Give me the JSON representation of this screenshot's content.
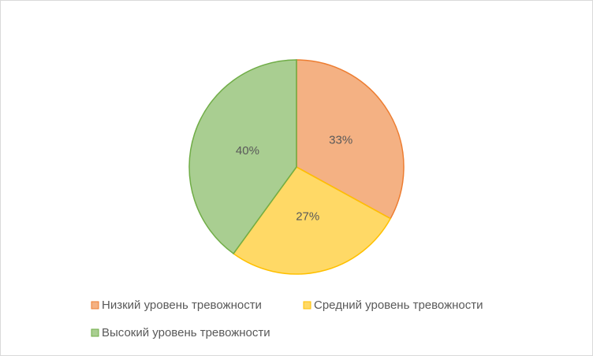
{
  "chart_data": {
    "type": "pie",
    "categories": [
      "Низкий уровень тревожности",
      "Средний уровень тревожности",
      "Высокий уровень тревожности"
    ],
    "values": [
      33,
      27,
      40
    ],
    "value_labels": [
      "33%",
      "27%",
      "40%"
    ],
    "colors": [
      "#ed7d31",
      "#ffc000",
      "#70ad47"
    ],
    "legend": "bottom"
  }
}
